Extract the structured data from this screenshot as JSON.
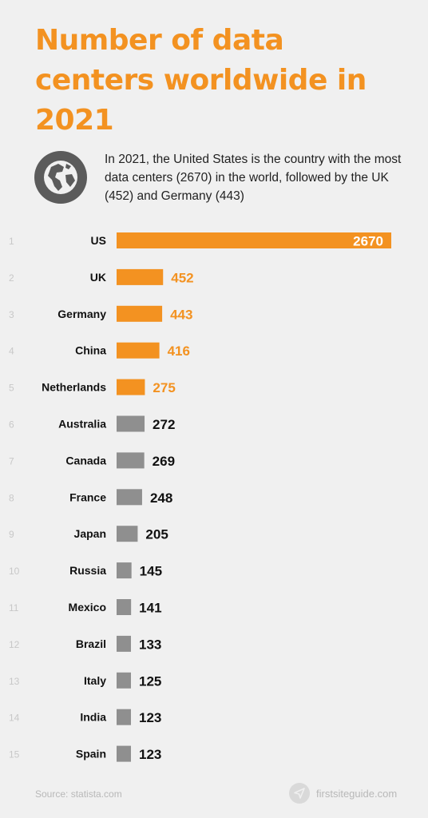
{
  "title": "Number of data centers worldwide in 2021",
  "subtitle": "In 2021, the United States is the country with the most data centers (2670) in the world, followed by the UK (452) and Germany (443)",
  "footer": {
    "source": "Source: statista.com",
    "brand": "firstsiteguide.com"
  },
  "icons": {
    "globe": "globe-icon",
    "brand_logo": "paper-plane-icon"
  },
  "colors": {
    "title": "#f39221",
    "highlight_bar": "#f39221",
    "default_bar": "#8f8f8f",
    "rank": "#c8c8c8",
    "background": "#f0f0f0"
  },
  "chart_data": {
    "type": "bar",
    "orientation": "horizontal",
    "ranks": [
      "1",
      "2",
      "3",
      "4",
      "5",
      "6",
      "7",
      "8",
      "9",
      "10",
      "11",
      "12",
      "13",
      "14",
      "15"
    ],
    "categories": [
      "US",
      "UK",
      "Germany",
      "China",
      "Netherlands",
      "Australia",
      "Canada",
      "France",
      "Japan",
      "Russia",
      "Mexico",
      "Brazil",
      "Italy",
      "India",
      "Spain"
    ],
    "values": [
      2670,
      452,
      443,
      416,
      275,
      272,
      269,
      248,
      205,
      145,
      141,
      133,
      125,
      123,
      123
    ],
    "highlighted": [
      true,
      true,
      true,
      true,
      true,
      false,
      false,
      false,
      false,
      false,
      false,
      false,
      false,
      false,
      false
    ],
    "xlim": [
      0,
      2670
    ],
    "grid": false,
    "legend": "none"
  }
}
